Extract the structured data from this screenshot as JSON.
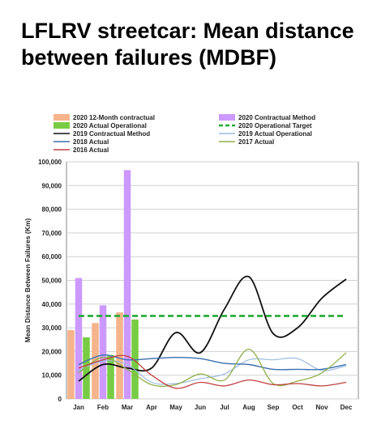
{
  "title": "LFLRV streetcar: Mean distance between failures (MDBF)",
  "chart_data": {
    "type": "bar",
    "categories": [
      "Jan",
      "Feb",
      "Mar",
      "Apr",
      "May",
      "Jun",
      "Jul",
      "Aug",
      "Sep",
      "Oct",
      "Nov",
      "Dec"
    ],
    "ylabel": "Mean Distance Between Failures (Km)",
    "xlabel": "",
    "ylim": [
      0,
      100000
    ],
    "yticks": [
      "0",
      "10,000",
      "20,000",
      "30,000",
      "40,000",
      "50,000",
      "60,000",
      "70,000",
      "80,000",
      "90,000",
      "100,000"
    ],
    "grid": true,
    "legend_position": "top",
    "bars": [
      {
        "name": "2020 12-Month contractual",
        "color": "#f6b48a",
        "values": [
          29000,
          32000,
          36500,
          null,
          null,
          null,
          null,
          null,
          null,
          null,
          null,
          null
        ]
      },
      {
        "name": "2020 Contractual Method",
        "color": "#cc99ff",
        "values": [
          51000,
          39500,
          96500,
          null,
          null,
          null,
          null,
          null,
          null,
          null,
          null,
          null
        ]
      },
      {
        "name": "2020 Actual Operational",
        "color": "#77cc44",
        "values": [
          26000,
          18500,
          33500,
          null,
          null,
          null,
          null,
          null,
          null,
          null,
          null,
          null
        ]
      }
    ],
    "lines": [
      {
        "name": "2020 Operational Target",
        "color": "#22aa33",
        "dashed": true,
        "width": 2.6,
        "values": [
          35000,
          35000,
          35000,
          35000,
          35000,
          35000,
          35000,
          35000,
          35000,
          35000,
          35000,
          35000
        ]
      },
      {
        "name": "2019 Contractual Method",
        "color": "#111111",
        "dashed": false,
        "width": 1.8,
        "values": [
          7500,
          14500,
          13000,
          13000,
          28000,
          19500,
          38000,
          51500,
          27500,
          30000,
          42500,
          50500
        ]
      },
      {
        "name": "2019 Actual Operational",
        "color": "#9bbbe0",
        "dashed": false,
        "width": 1.2,
        "values": [
          12000,
          16000,
          14500,
          7000,
          6500,
          8500,
          10500,
          16500,
          16500,
          17000,
          12000,
          14000
        ]
      },
      {
        "name": "2018 Actual",
        "color": "#3a6fb0",
        "dashed": false,
        "width": 1.4,
        "values": [
          14500,
          18500,
          16500,
          17000,
          17500,
          17000,
          15000,
          14500,
          12500,
          12500,
          12500,
          14500
        ]
      },
      {
        "name": "2017 Actual",
        "color": "#8fb04a",
        "dashed": false,
        "width": 1.3,
        "values": [
          11000,
          17500,
          12500,
          6000,
          6000,
          10500,
          8000,
          21000,
          6500,
          7500,
          11000,
          19500
        ]
      },
      {
        "name": "2016 Actual",
        "color": "#c04040",
        "dashed": false,
        "width": 1.3,
        "values": [
          13000,
          16500,
          18000,
          10000,
          4500,
          7000,
          5500,
          8000,
          6000,
          6500,
          5500,
          7000
        ]
      }
    ]
  },
  "legend_order": [
    [
      "2020 12-Month contractual",
      "2020 Contractual Method"
    ],
    [
      "2020 Actual Operational",
      "2020 Operational Target"
    ],
    [
      "2019 Contractual Method",
      "2019 Actual Operational"
    ],
    [
      "2018 Actual",
      "2017 Actual"
    ],
    [
      "2016 Actual"
    ]
  ]
}
